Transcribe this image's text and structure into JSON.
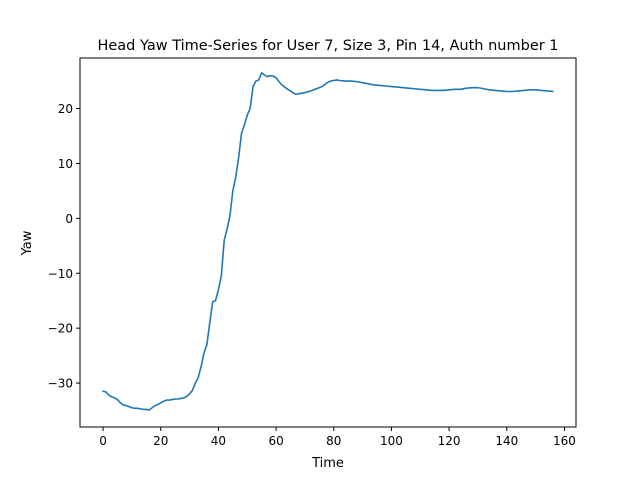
{
  "chart_data": {
    "type": "line",
    "title": "Head Yaw Time-Series for User 7, Size 3, Pin 14, Auth number 1",
    "xlabel": "Time",
    "ylabel": "Yaw",
    "xlim": [
      -8,
      164
    ],
    "ylim": [
      -38,
      29.2
    ],
    "xticks": [
      0,
      20,
      40,
      60,
      80,
      100,
      120,
      140,
      160
    ],
    "yticks": [
      -30,
      -20,
      -10,
      0,
      10,
      20
    ],
    "grid": false,
    "legend": "none",
    "series": [
      {
        "color": "#1f77b4",
        "x": [
          0,
          1,
          2,
          3,
          4,
          5,
          6,
          7,
          8,
          9,
          10,
          11,
          12,
          13,
          14,
          15,
          16,
          17,
          18,
          19,
          20,
          21,
          22,
          23,
          24,
          25,
          26,
          27,
          28,
          29,
          30,
          31,
          32,
          33,
          34,
          35,
          36,
          37,
          38,
          39,
          40,
          41,
          42,
          43,
          44,
          45,
          46,
          47,
          48,
          49,
          50,
          51,
          52,
          53,
          54,
          55,
          56,
          57,
          58,
          59,
          60,
          61,
          62,
          63,
          64,
          65,
          66,
          67,
          68,
          70,
          72,
          74,
          76,
          78,
          79,
          80,
          81,
          82,
          84,
          86,
          88,
          90,
          92,
          94,
          96,
          98,
          100,
          102,
          104,
          106,
          108,
          110,
          112,
          114,
          116,
          118,
          120,
          122,
          124,
          126,
          128,
          130,
          132,
          134,
          136,
          138,
          140,
          142,
          144,
          146,
          148,
          150,
          152,
          154,
          156
        ],
        "y": [
          -31.5,
          -31.6,
          -32.2,
          -32.5,
          -32.7,
          -33.0,
          -33.6,
          -34.0,
          -34.1,
          -34.3,
          -34.5,
          -34.6,
          -34.6,
          -34.7,
          -34.8,
          -34.8,
          -34.9,
          -34.5,
          -34.1,
          -33.9,
          -33.6,
          -33.3,
          -33.1,
          -33.1,
          -33.0,
          -32.9,
          -32.9,
          -32.8,
          -32.7,
          -32.4,
          -32.0,
          -31.3,
          -30.0,
          -29.0,
          -27.0,
          -24.5,
          -23.0,
          -19.0,
          -15.2,
          -15.0,
          -13.0,
          -10.5,
          -4.0,
          -2.0,
          0.5,
          5.0,
          7.5,
          11.0,
          15.5,
          17.0,
          18.8,
          20.0,
          24.0,
          25.0,
          25.2,
          26.5,
          26.1,
          25.8,
          26.0,
          25.9,
          25.6,
          24.9,
          24.3,
          23.9,
          23.5,
          23.2,
          22.8,
          22.6,
          22.7,
          22.9,
          23.2,
          23.6,
          24.0,
          24.8,
          25.0,
          25.1,
          25.2,
          25.1,
          25.0,
          25.0,
          24.9,
          24.7,
          24.5,
          24.3,
          24.2,
          24.1,
          24.0,
          23.9,
          23.8,
          23.7,
          23.6,
          23.5,
          23.4,
          23.3,
          23.3,
          23.3,
          23.4,
          23.5,
          23.5,
          23.7,
          23.8,
          23.8,
          23.6,
          23.4,
          23.3,
          23.2,
          23.1,
          23.1,
          23.2,
          23.3,
          23.4,
          23.4,
          23.3,
          23.2,
          23.1
        ]
      }
    ]
  }
}
